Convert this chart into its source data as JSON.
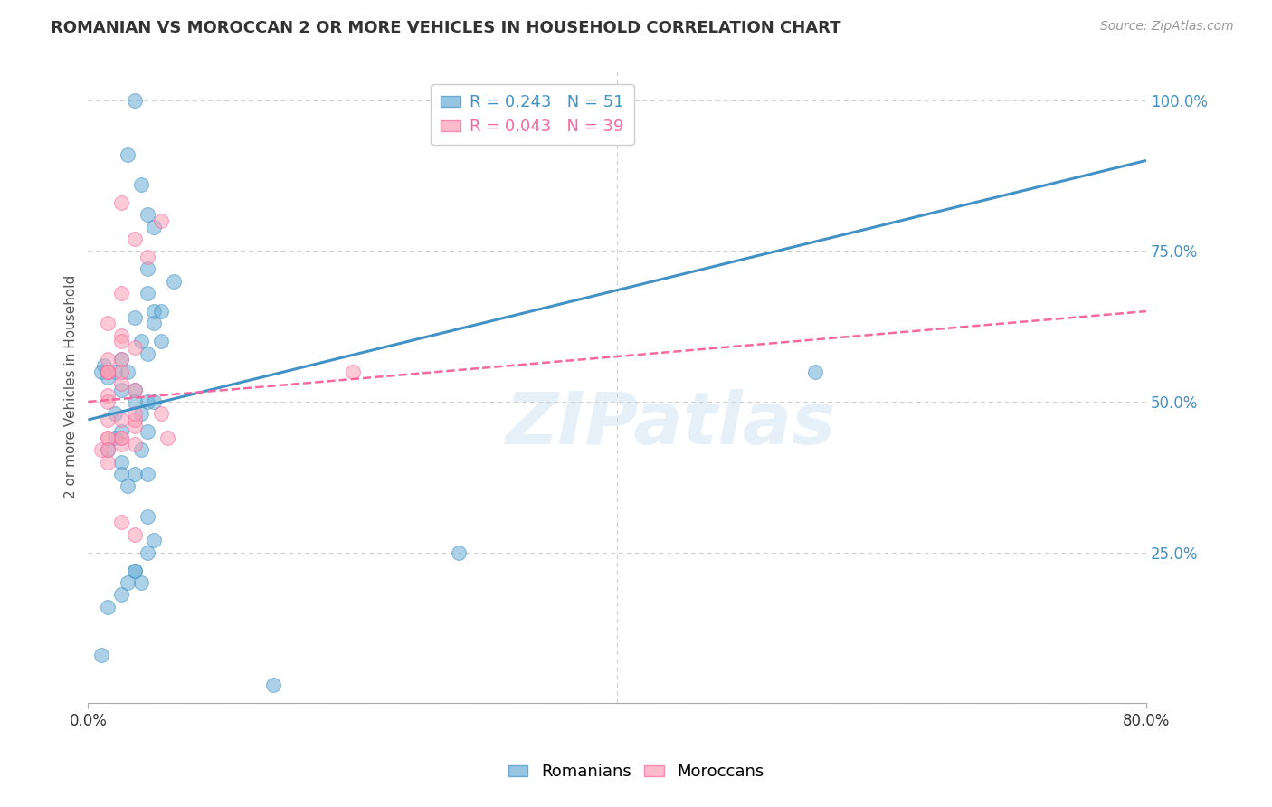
{
  "title": "ROMANIAN VS MOROCCAN 2 OR MORE VEHICLES IN HOUSEHOLD CORRELATION CHART",
  "source": "Source: ZipAtlas.com",
  "ylabel": "2 or more Vehicles in Household",
  "watermark": "ZIPatlas",
  "legend1_label": "R = 0.243   N = 51",
  "legend2_label": "R = 0.043   N = 39",
  "legend1_color": "#6baed6",
  "legend2_color": "#fa9fb5",
  "trendline1_color": "#4292c6",
  "trendline2_color": "#f768a1",
  "romanian_x": [
    1.2,
    3.5,
    4.5,
    5.0,
    3.0,
    4.0,
    6.5,
    4.5,
    3.5,
    5.0,
    4.5,
    4.0,
    5.0,
    2.5,
    3.0,
    4.5,
    5.5,
    2.0,
    2.5,
    1.5,
    2.5,
    3.5,
    4.5,
    5.5,
    3.5,
    4.5,
    2.0,
    4.0,
    3.0,
    4.5,
    5.0,
    4.0,
    3.5,
    4.0,
    4.5,
    5.0,
    2.0,
    1.5,
    2.5,
    3.5,
    4.5,
    55.0,
    1.0,
    2.5,
    3.5,
    28.0,
    1.5,
    2.5,
    3.0,
    14.0,
    1.0
  ],
  "romanian_y": [
    56,
    100,
    81,
    79,
    91,
    86,
    70,
    68,
    64,
    65,
    72,
    60,
    63,
    57,
    55,
    58,
    65,
    48,
    45,
    42,
    40,
    38,
    38,
    60,
    52,
    50,
    44,
    42,
    36,
    45,
    50,
    48,
    22,
    20,
    25,
    27,
    55,
    54,
    52,
    50,
    31,
    55,
    8,
    18,
    22,
    25,
    16,
    38,
    20,
    3,
    55
  ],
  "moroccan_x": [
    2.5,
    4.5,
    5.5,
    3.5,
    2.5,
    1.5,
    2.5,
    3.5,
    1.5,
    2.5,
    1.5,
    1.5,
    2.5,
    3.5,
    5.5,
    1.5,
    2.5,
    1.0,
    3.5,
    6.0,
    1.5,
    2.5,
    1.5,
    3.5,
    2.5,
    1.5,
    1.5,
    2.5,
    3.5,
    1.5,
    2.5,
    20.0,
    1.5,
    2.5,
    3.5,
    1.5,
    2.5,
    3.5,
    1.5
  ],
  "moroccan_y": [
    83,
    74,
    80,
    77,
    68,
    63,
    61,
    59,
    55,
    53,
    51,
    55,
    57,
    52,
    48,
    47,
    44,
    42,
    43,
    44,
    50,
    55,
    57,
    46,
    43,
    40,
    55,
    60,
    47,
    44,
    44,
    55,
    44,
    30,
    28,
    42,
    47,
    48,
    55
  ],
  "xlim": [
    0,
    80
  ],
  "ylim": [
    0,
    105
  ],
  "background_color": "#ffffff",
  "grid_color": "#cccccc",
  "ytick_values": [
    0,
    25,
    50,
    75,
    100
  ],
  "ytick_labels": [
    "",
    "25.0%",
    "50.0%",
    "75.0%",
    "100.0%"
  ],
  "xtick_values": [
    0,
    80
  ],
  "xtick_labels": [
    "0.0%",
    "80.0%"
  ]
}
